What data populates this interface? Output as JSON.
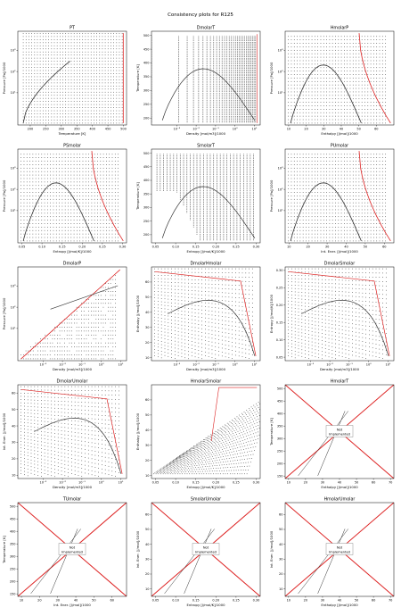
{
  "figure": {
    "title": "Consistency plots for R125",
    "not_implemented_text": [
      "Not",
      "Implemented"
    ]
  },
  "colors": {
    "saturation": "#dd2222",
    "points": "#222222",
    "frame": "#000000"
  },
  "chart_data": [
    {
      "type": "scatter",
      "title": "PT",
      "xlabel": "Temperature [K]",
      "ylabel": "Pressure [Pa]/1000",
      "xlim": [
        160,
        510
      ],
      "ylim_log": [
        0.3,
        8000
      ],
      "xticks": [
        200,
        250,
        300,
        350,
        400,
        450,
        500
      ],
      "yticks_exp": [
        1,
        2,
        3
      ]
    },
    {
      "type": "scatter",
      "title": "DmolarT",
      "xlabel": "Density [mol/m3]/1000",
      "ylabel": "Temperature [K]",
      "xlim_log": [
        5e-05,
        20
      ],
      "ylim": [
        175,
        515
      ],
      "xticks_exp": [
        -3,
        -2,
        -1,
        0,
        1
      ],
      "yticks": [
        200,
        250,
        300,
        350,
        400,
        450,
        500
      ]
    },
    {
      "type": "scatter",
      "title": "HmolarP",
      "xlabel": "Enthalpy [J/mol]/1000",
      "ylabel": "Pressure [Pa]/1000",
      "xlim": [
        8,
        70
      ],
      "ylim_log": [
        0.3,
        8000
      ],
      "xticks": [
        10,
        20,
        30,
        40,
        50,
        60
      ],
      "yticks_exp": [
        1,
        2,
        3
      ]
    },
    {
      "type": "scatter",
      "title": "PSmolar",
      "xlabel": "Entropy [J/mol/K]/1000",
      "ylabel": "Pressure [Pa]/1000",
      "xlim": [
        0.04,
        0.31
      ],
      "ylim_log": [
        0.3,
        8000
      ],
      "xticks": [
        0.05,
        0.1,
        0.15,
        0.2,
        0.25,
        0.3
      ],
      "yticks_exp": [
        1,
        2,
        3
      ]
    },
    {
      "type": "scatter",
      "title": "SmolarT",
      "xlabel": "Entropy [J/mol/K]/1000",
      "ylabel": "Temperature [K]",
      "xlim": [
        0.04,
        0.31
      ],
      "ylim": [
        170,
        515
      ],
      "xticks": [
        0.05,
        0.1,
        0.15,
        0.2,
        0.25,
        0.3
      ],
      "yticks": [
        200,
        250,
        300,
        350,
        400,
        450,
        500
      ]
    },
    {
      "type": "scatter",
      "title": "PUmolar",
      "xlabel": "Int. Ener. [J/mol]/1000",
      "ylabel": "Pressure [Pa]/1000",
      "xlim": [
        8,
        65
      ],
      "ylim_log": [
        0.3,
        8000
      ],
      "xticks": [
        10,
        20,
        30,
        40,
        50,
        60
      ],
      "yticks_exp": [
        1,
        2,
        3
      ]
    },
    {
      "type": "scatter",
      "title": "DmolarP",
      "xlabel": "Density [mol/m3]/1000",
      "ylabel": "Pressure [Pa]/1000",
      "xlim_log": [
        5e-05,
        20
      ],
      "ylim_log": [
        0.3,
        8000
      ],
      "xticks_exp": [
        -3,
        -2,
        -1,
        0,
        1
      ],
      "yticks_exp": [
        1,
        2,
        3
      ]
    },
    {
      "type": "scatter",
      "title": "DmolarHmolar",
      "xlabel": "Density [mol/m3]/1000",
      "ylabel": "Enthalpy [J/mol]/1000",
      "xlim_log": [
        5e-05,
        20
      ],
      "ylim": [
        8,
        70
      ],
      "xticks_exp": [
        -3,
        -2,
        -1,
        0,
        1
      ],
      "yticks": [
        10,
        20,
        30,
        40,
        50,
        60
      ]
    },
    {
      "type": "scatter",
      "title": "DmolarSmolar",
      "xlabel": "Density [mol/m3]/1000",
      "ylabel": "Entropy [J/mol/K]/1000",
      "xlim_log": [
        5e-05,
        20
      ],
      "ylim": [
        0.04,
        0.31
      ],
      "xticks_exp": [
        -3,
        -2,
        -1,
        0,
        1
      ],
      "yticks": [
        0.05,
        0.1,
        0.15,
        0.2,
        0.25,
        0.3
      ]
    },
    {
      "type": "scatter",
      "title": "DmolarUmolar",
      "xlabel": "Density [mol/m3]/1000",
      "ylabel": "Int. Ener. [J/mol]/1000",
      "xlim_log": [
        5e-05,
        20
      ],
      "ylim": [
        8,
        65
      ],
      "xticks_exp": [
        -3,
        -2,
        -1,
        0,
        1
      ],
      "yticks": [
        10,
        20,
        30,
        40,
        50,
        60
      ]
    },
    {
      "type": "scatter",
      "title": "HmolarSmolar",
      "xlabel": "Entropy [J/mol/K]/1000",
      "ylabel": "Enthalpy [J/mol]/1000",
      "xlim": [
        0.04,
        0.31
      ],
      "ylim": [
        8,
        70
      ],
      "xticks": [
        0.05,
        0.1,
        0.15,
        0.2,
        0.25,
        0.3
      ],
      "yticks": [
        10,
        20,
        30,
        40,
        50,
        60
      ]
    },
    {
      "type": "scatter",
      "title": "HmolarT",
      "xlabel": "Enthalpy [J/mol]/1000",
      "ylabel": "Temperature [K]",
      "xlim": [
        8,
        72
      ],
      "ylim": [
        140,
        515
      ],
      "not_implemented": true,
      "xticks": [
        10,
        20,
        30,
        40,
        50,
        60,
        70
      ],
      "yticks": [
        150,
        200,
        250,
        300,
        350,
        400,
        450,
        500
      ]
    },
    {
      "type": "scatter",
      "title": "TUmolar",
      "xlabel": "Int. Ener. [J/mol]/1000",
      "ylabel": "Temperature [K]",
      "xlim": [
        8,
        68
      ],
      "ylim": [
        140,
        515
      ],
      "not_implemented": true,
      "xticks": [
        10,
        20,
        30,
        40,
        50,
        60
      ],
      "yticks": [
        150,
        200,
        250,
        300,
        350,
        400,
        450,
        500
      ]
    },
    {
      "type": "scatter",
      "title": "SmolarUmolar",
      "xlabel": "Entropy [J/mol/K]/1000",
      "ylabel": "Int. Ener. [J/mol]/1000",
      "xlim": [
        0.04,
        0.31
      ],
      "ylim": [
        5,
        68
      ],
      "not_implemented": true,
      "xticks": [
        0.05,
        0.1,
        0.15,
        0.2,
        0.25,
        0.3
      ],
      "yticks": [
        10,
        20,
        30,
        40,
        50,
        60
      ]
    },
    {
      "type": "scatter",
      "title": "HmolarUmolar",
      "xlabel": "Enthalpy [J/mol]/1000",
      "ylabel": "Int. Ener. [J/mol]/1000",
      "xlim": [
        8,
        72
      ],
      "ylim": [
        5,
        68
      ],
      "not_implemented": true,
      "xticks": [
        10,
        20,
        30,
        40,
        50,
        60,
        70
      ],
      "yticks": [
        10,
        20,
        30,
        40,
        50,
        60
      ]
    }
  ]
}
